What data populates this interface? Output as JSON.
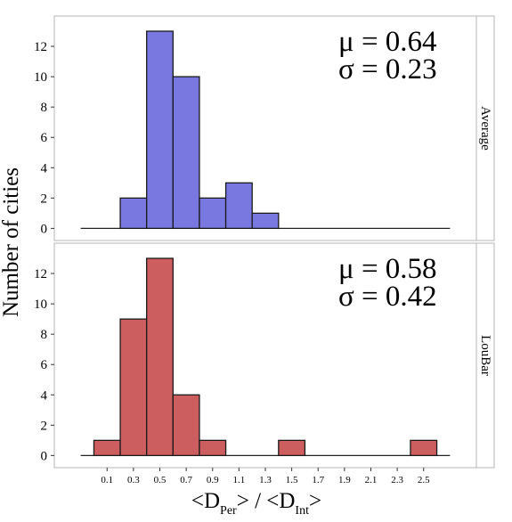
{
  "chart_data": {
    "type": "bar",
    "ylabel": "Number of cities",
    "xlabel": {
      "prefix": "<D",
      "sub1": "Per",
      "middle": "> / <D",
      "sub2": "Int",
      "suffix": ">"
    },
    "bin_width": 0.2,
    "xlim": [
      -0.3,
      2.9
    ],
    "x_ticks": [
      {
        "value": 0.1,
        "label": "0.1"
      },
      {
        "value": 0.3,
        "label": "0.3"
      },
      {
        "value": 0.5,
        "label": "0.5"
      },
      {
        "value": 0.7,
        "label": "0.7"
      },
      {
        "value": 0.9,
        "label": "0.9"
      },
      {
        "value": 1.1,
        "label": "1.1"
      },
      {
        "value": 1.3,
        "label": "1.3"
      },
      {
        "value": 1.5,
        "label": "1.5"
      },
      {
        "value": 1.7,
        "label": "1.7"
      },
      {
        "value": 1.9,
        "label": "1.9"
      },
      {
        "value": 2.1,
        "label": "2.1"
      },
      {
        "value": 2.3,
        "label": "2.3"
      },
      {
        "value": 2.5,
        "label": "2.5"
      }
    ],
    "ylim": [
      -0.8,
      14
    ],
    "y_ticks": [
      {
        "value": 0,
        "label": "0"
      },
      {
        "value": 2,
        "label": "2"
      },
      {
        "value": 4,
        "label": "4"
      },
      {
        "value": 6,
        "label": "6"
      },
      {
        "value": 8,
        "label": "8"
      },
      {
        "value": 10,
        "label": "10"
      },
      {
        "value": 12,
        "label": "12"
      }
    ],
    "baseline_range": [
      -0.1,
      2.7
    ],
    "panels": [
      {
        "name": "Average",
        "color": "#7878e0",
        "stat_mu": "μ = 0.64",
        "stat_sigma": "σ = 0.23",
        "bins": [
          {
            "center": 0.3,
            "count": 2
          },
          {
            "center": 0.5,
            "count": 13
          },
          {
            "center": 0.7,
            "count": 10
          },
          {
            "center": 0.9,
            "count": 2
          },
          {
            "center": 1.1,
            "count": 3
          },
          {
            "center": 1.3,
            "count": 1
          }
        ]
      },
      {
        "name": "LouBar",
        "color": "#cd5e60",
        "stat_mu": "μ = 0.58",
        "stat_sigma": "σ = 0.42",
        "bins": [
          {
            "center": 0.1,
            "count": 1
          },
          {
            "center": 0.3,
            "count": 9
          },
          {
            "center": 0.5,
            "count": 13
          },
          {
            "center": 0.7,
            "count": 4
          },
          {
            "center": 0.9,
            "count": 1
          },
          {
            "center": 1.5,
            "count": 1
          },
          {
            "center": 2.5,
            "count": 1
          }
        ]
      }
    ]
  }
}
